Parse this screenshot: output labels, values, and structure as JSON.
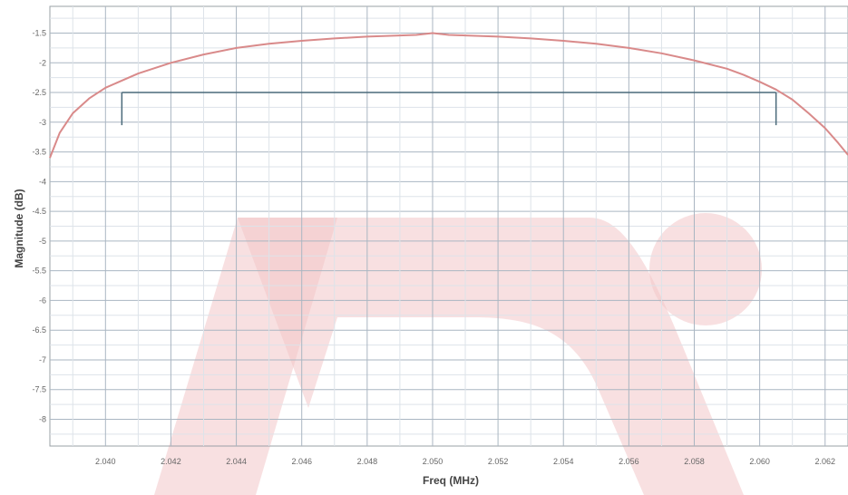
{
  "chart_data": {
    "type": "line",
    "title": "",
    "xlabel": "Freq (MHz)",
    "ylabel": "Magnitude (dB)",
    "xlim": [
      2.0383,
      2.0627
    ],
    "ylim": [
      -8.45,
      -1.05
    ],
    "x_ticks": [
      2.04,
      2.042,
      2.044,
      2.046,
      2.048,
      2.05,
      2.052,
      2.054,
      2.056,
      2.058,
      2.06,
      2.062
    ],
    "x_tick_labels": [
      "2.040",
      "2.042",
      "2.044",
      "2.046",
      "2.048",
      "2.050",
      "2.052",
      "2.054",
      "2.056",
      "2.058",
      "2.060",
      "2.062"
    ],
    "y_ticks": [
      -1.5,
      -2,
      -2.5,
      -3,
      -3.5,
      -4,
      -4.5,
      -5,
      -5.5,
      -6,
      -6.5,
      -7,
      -7.5,
      -8
    ],
    "y_tick_labels": [
      "-1.5",
      "-2",
      "-2.5",
      "-3",
      "-3.5",
      "-4",
      "-4.5",
      "-5",
      "-5.5",
      "-6",
      "-6.5",
      "-7",
      "-7.5",
      "-8"
    ],
    "grid": true,
    "series": [
      {
        "color": "#d98a8a",
        "x": [
          2.0383,
          2.0386,
          2.039,
          2.0395,
          2.04,
          2.0405,
          2.041,
          2.042,
          2.043,
          2.044,
          2.045,
          2.046,
          2.047,
          2.048,
          2.049,
          2.0495,
          2.05,
          2.0505,
          2.051,
          2.052,
          2.053,
          2.054,
          2.055,
          2.056,
          2.057,
          2.058,
          2.059,
          2.0595,
          2.06,
          2.0605,
          2.061,
          2.0615,
          2.062,
          2.0624,
          2.0627
        ],
        "y": [
          -3.6,
          -3.18,
          -2.85,
          -2.6,
          -2.42,
          -2.3,
          -2.18,
          -2.0,
          -1.86,
          -1.75,
          -1.68,
          -1.63,
          -1.59,
          -1.56,
          -1.54,
          -1.53,
          -1.5,
          -1.53,
          -1.54,
          -1.56,
          -1.59,
          -1.63,
          -1.68,
          -1.75,
          -1.84,
          -1.96,
          -2.1,
          -2.2,
          -2.32,
          -2.45,
          -2.62,
          -2.85,
          -3.1,
          -3.35,
          -3.55
        ]
      }
    ],
    "marker": {
      "color": "#4a6a7a",
      "level": -2.5,
      "x_start": 2.0405,
      "x_end": 2.0605,
      "tick_bottom": -3.05
    },
    "watermark_color": "#f2c7c9"
  }
}
